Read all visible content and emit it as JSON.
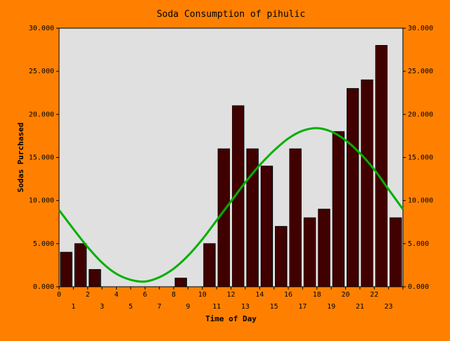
{
  "colors": {
    "background": "#FF8000",
    "plot_background": "#E0E0E0",
    "bar_fill": "#800000",
    "bar_hatch": "#000000",
    "curve": "#00B000"
  },
  "chart_data": {
    "type": "bar",
    "title": "Soda Consumption of pihulic",
    "xlabel": "Time of Day",
    "ylabel": "Sodas Purchased",
    "categories": [
      "0",
      "1",
      "2",
      "3",
      "4",
      "5",
      "6",
      "7",
      "8",
      "9",
      "10",
      "11",
      "12",
      "13",
      "14",
      "15",
      "16",
      "17",
      "18",
      "19",
      "20",
      "21",
      "22",
      "23"
    ],
    "x_tick_labels": [
      "0",
      "1",
      "2",
      "3",
      "4",
      "5",
      "6",
      "7",
      "8",
      "9",
      "10",
      "11",
      "12",
      "13",
      "14",
      "15",
      "16",
      "17",
      "18",
      "19",
      "20",
      "21",
      "22",
      "23"
    ],
    "y_tick_labels": [
      "0.000",
      "5.000",
      "10.000",
      "15.000",
      "20.000",
      "25.000",
      "30.000"
    ],
    "series": [
      {
        "type": "bar",
        "values": [
          4,
          5,
          2,
          0,
          0,
          0,
          0,
          0,
          1,
          0,
          5,
          16,
          21,
          16,
          14,
          7,
          16,
          8,
          9,
          18,
          23,
          24,
          28,
          8
        ]
      },
      {
        "type": "line",
        "smooth": true,
        "x": [
          0,
          1,
          2,
          3,
          4,
          5,
          6,
          7,
          8,
          9,
          10,
          11,
          12,
          13,
          14,
          15,
          16,
          17,
          18,
          19,
          20,
          21,
          22,
          23,
          24
        ],
        "values": [
          8.9,
          6.7,
          4.6,
          2.8,
          1.5,
          0.8,
          0.6,
          1.1,
          2.1,
          3.6,
          5.5,
          7.7,
          9.9,
          12.1,
          14.1,
          15.8,
          17.2,
          18.1,
          18.4,
          18.0,
          17.0,
          15.5,
          13.6,
          11.3,
          9.0
        ]
      }
    ],
    "xlim": [
      0,
      24
    ],
    "ylim": [
      0,
      30
    ],
    "right_axis": true,
    "grid": false,
    "legend": "none"
  }
}
